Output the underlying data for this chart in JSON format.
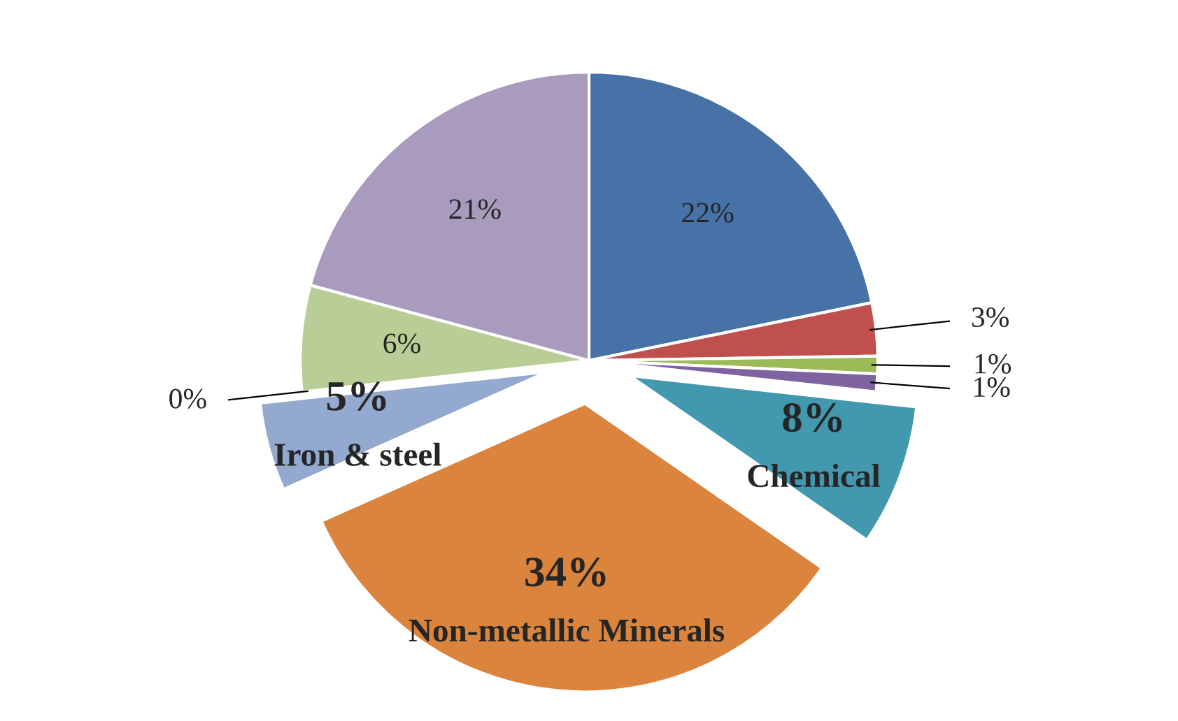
{
  "chart_data": {
    "type": "pie",
    "categories": [
      null,
      null,
      null,
      null,
      "Chemical",
      "Non-metallic Minerals",
      "Iron & steel",
      null,
      null,
      null
    ],
    "values": [
      22,
      3,
      1,
      1,
      8,
      34,
      5,
      0,
      6,
      21
    ],
    "value_labels": [
      "22%",
      "3%",
      "1%",
      "1%",
      "8%",
      "34%",
      "5%",
      "0%",
      "6%",
      "21%"
    ],
    "colors": [
      "#4672a8",
      "#c0504d",
      "#9bbb59",
      "#7f63a0",
      "#4198af",
      "#db843d",
      "#93a9cf",
      "#d9d9d9",
      "#b9cd96",
      "#a99bbd"
    ]
  }
}
